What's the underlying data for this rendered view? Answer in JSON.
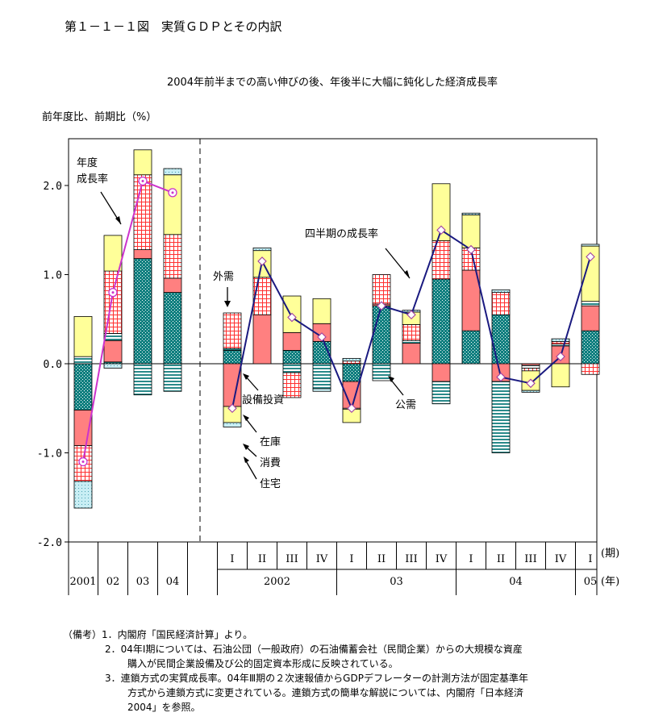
{
  "figure": {
    "title": "第１－１－１図　実質ＧＤＰとその内訳",
    "subtitle": "2004年前半までの高い伸びの後、年後半に大幅に鈍化した経済成長率",
    "ylabel": "前年度比、前期比（%）",
    "period_unit_label": "(期)",
    "year_unit_label": "(年)"
  },
  "chart_data": {
    "type": "bar",
    "stacked": true,
    "ylim": [
      -2.0,
      2.5
    ],
    "yticks": [
      {
        "value": -2.0,
        "label": "-2.0"
      },
      {
        "value": -1.0,
        "label": "-1.0"
      },
      {
        "value": 0.0,
        "label": "0.0"
      },
      {
        "value": 1.0,
        "label": "1.0"
      },
      {
        "value": 2.0,
        "label": "2.0"
      }
    ],
    "categories": [
      {
        "period": "",
        "year": "2001"
      },
      {
        "period": "",
        "year": "02"
      },
      {
        "period": "",
        "year": "03"
      },
      {
        "period": "",
        "year": "04"
      },
      {
        "period": "I",
        "year": "2002"
      },
      {
        "period": "II",
        "year": "2002"
      },
      {
        "period": "III",
        "year": "2002"
      },
      {
        "period": "IV",
        "year": "2002"
      },
      {
        "period": "I",
        "year": "03"
      },
      {
        "period": "II",
        "year": "03"
      },
      {
        "period": "III",
        "year": "03"
      },
      {
        "period": "IV",
        "year": "03"
      },
      {
        "period": "I",
        "year": "04"
      },
      {
        "period": "II",
        "year": "04"
      },
      {
        "period": "III",
        "year": "04"
      },
      {
        "period": "IV",
        "year": "04"
      },
      {
        "period": "I",
        "year": "05"
      }
    ],
    "year_groups": [
      {
        "label": "2001",
        "start": 0,
        "end": 0
      },
      {
        "label": "02",
        "start": 1,
        "end": 1
      },
      {
        "label": "03",
        "start": 2,
        "end": 2
      },
      {
        "label": "04",
        "start": 3,
        "end": 3
      },
      {
        "label": "2002",
        "start": 4,
        "end": 7
      },
      {
        "label": "03",
        "start": 8,
        "end": 11
      },
      {
        "label": "04",
        "start": 12,
        "end": 15
      },
      {
        "label": "05",
        "start": 16,
        "end": 16
      }
    ],
    "component_order": [
      "investment",
      "inventory",
      "public",
      "external",
      "consumption",
      "housing"
    ],
    "series": [
      {
        "key": "investment",
        "name": "設備投資",
        "color": "#0f7f7f",
        "pattern": "dots",
        "values": [
          -0.52,
          0.02,
          1.18,
          0.8,
          0.15,
          0.0,
          0.15,
          0.25,
          -0.2,
          0.65,
          0.0,
          0.95,
          0.37,
          0.55,
          0.0,
          0.0,
          0.37
        ]
      },
      {
        "key": "inventory",
        "name": "在庫",
        "color": "#ff8080",
        "pattern": "solid",
        "values": [
          -0.4,
          0.24,
          0.1,
          0.16,
          -0.48,
          0.55,
          0.2,
          0.2,
          -0.3,
          0.02,
          0.23,
          -0.2,
          0.68,
          -0.2,
          -0.02,
          0.2,
          0.28
        ]
      },
      {
        "key": "public",
        "name": "公需",
        "color": "#8fb4d8",
        "pattern": "hlines",
        "values": [
          0.08,
          0.08,
          -0.35,
          -0.31,
          0.02,
          0.0,
          -0.1,
          -0.28,
          -0.01,
          -0.19,
          0.03,
          -0.25,
          0.0,
          -0.8,
          -0.03,
          0.02,
          0.05
        ]
      },
      {
        "key": "external",
        "name": "外需",
        "color": "#ff6060",
        "pattern": "grid",
        "values": [
          -0.4,
          0.7,
          0.84,
          0.49,
          0.4,
          0.42,
          -0.28,
          0.0,
          0.03,
          0.33,
          0.18,
          0.43,
          0.25,
          0.25,
          -0.03,
          0.03,
          -0.12
        ]
      },
      {
        "key": "consumption",
        "name": "消費",
        "color": "#ffff99",
        "pattern": "solid",
        "values": [
          0.45,
          0.4,
          0.28,
          0.67,
          -0.18,
          0.3,
          0.41,
          0.28,
          -0.15,
          0.0,
          0.14,
          0.64,
          0.37,
          0.0,
          -0.22,
          -0.26,
          0.62
        ]
      },
      {
        "key": "housing",
        "name": "住宅",
        "color": "#bfe8f0",
        "pattern": "dots",
        "values": [
          -0.3,
          -0.05,
          0.0,
          0.07,
          -0.05,
          0.03,
          0.0,
          -0.03,
          0.03,
          0.0,
          0.02,
          0.0,
          0.02,
          0.03,
          -0.02,
          0.03,
          0.02
        ]
      }
    ],
    "lines": [
      {
        "key": "fy_growth",
        "name": "年度成長率",
        "color": "#cc33cc",
        "start": 0,
        "values": [
          -1.1,
          0.8,
          2.05,
          1.92
        ]
      },
      {
        "key": "q_growth",
        "name": "四半期の成長率",
        "color": "#1a1a80",
        "start": 4,
        "values": [
          -0.5,
          1.15,
          0.52,
          0.3,
          -0.5,
          0.65,
          0.55,
          1.5,
          1.28,
          -0.15,
          -0.22,
          0.08,
          1.2
        ]
      }
    ]
  },
  "annotations": {
    "fy_growth_1": "年度",
    "fy_growth_2": "成長率",
    "q_growth": "四半期の成長率",
    "external": "外需",
    "investment": "設備投資",
    "public": "公需",
    "inventory": "在庫",
    "consumption": "消費",
    "housing": "住宅"
  },
  "notes": [
    "（備考）1．内閣府「国民経済計算」より。",
    "2．04年Ⅰ期については、石油公団（一般政府）の石油備蓄会社（民間企業）からの大規模な資産",
    "購入が民間企業設備及び公的固定資本形成に反映されている。",
    "3．連鎖方式の実質成長率。04年Ⅲ期の２次速報値からGDPデフレーターの計測方法が固定基準年",
    "方式から連鎖方式に変更されている。連鎖方式の簡単な解説については、内閣府「日本経済",
    "2004」を参照。"
  ]
}
